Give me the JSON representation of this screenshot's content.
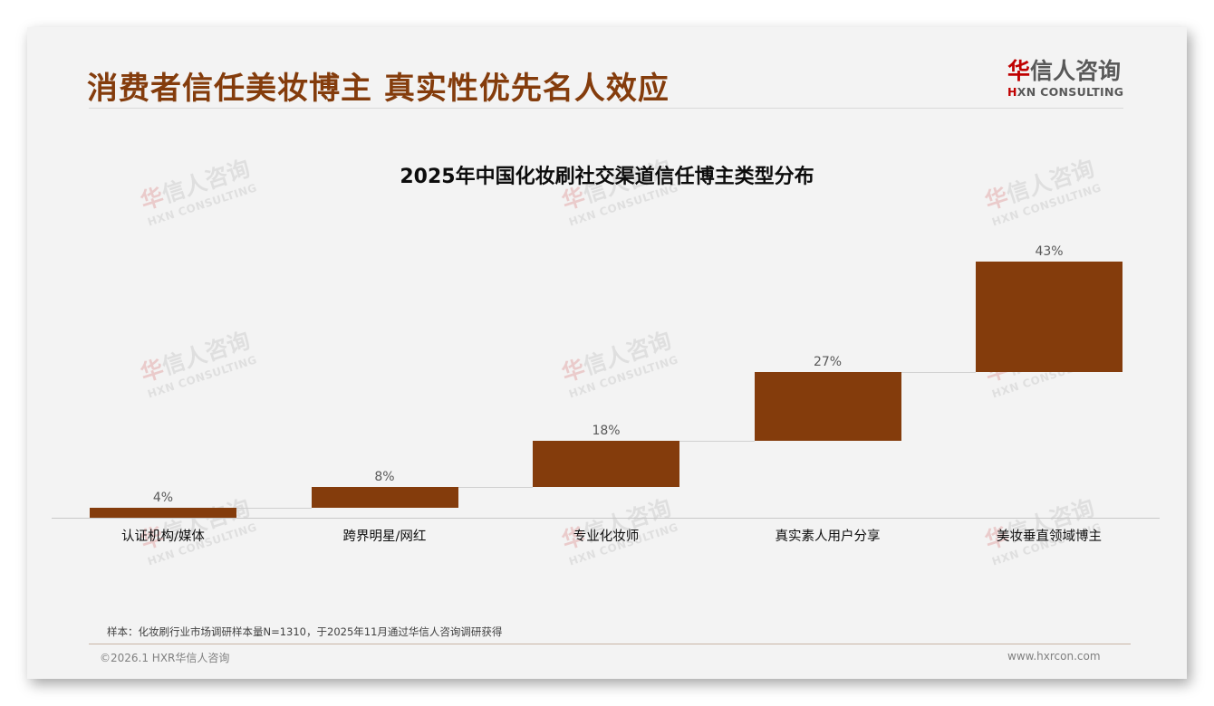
{
  "header": {
    "title": "消费者信任美妆博主 真实性优先名人效应",
    "logo": {
      "cn_first_char": "华",
      "cn_rest": "信人咨询",
      "en_first_char": "H",
      "en_rest": "XN CONSULTING",
      "accent_color": "#c00000"
    }
  },
  "watermark": {
    "cn_first_char": "华",
    "cn_rest": "信人咨询",
    "en": "HXN CONSULTING"
  },
  "chart_data": {
    "type": "waterfall",
    "title": "2025年中国化妆刷社交渠道信任博主类型分布",
    "categories": [
      "认证机构/媒体",
      "跨界明星/网红",
      "专业化妆师",
      "真实素人用户分享",
      "美妆垂直领域博主"
    ],
    "values": [
      4,
      8,
      18,
      27,
      43
    ],
    "value_labels": [
      "4%",
      "8%",
      "18%",
      "27%",
      "43%"
    ],
    "cumulative_start": [
      0,
      4,
      12,
      30,
      57
    ],
    "cumulative_end": [
      4,
      12,
      30,
      57,
      100
    ],
    "unit": "%",
    "xlabel": "",
    "ylabel": "",
    "ylim": [
      0,
      100
    ],
    "grid": false,
    "legend": "none",
    "bar_color": "#843c0c"
  },
  "footer": {
    "note": "样本：化妆刷行业市场调研样本量N=1310，于2025年11月通过华信人咨询调研获得",
    "copyright": "©2026.1 HXR华信人咨询",
    "website": "www.hxrcon.com"
  }
}
